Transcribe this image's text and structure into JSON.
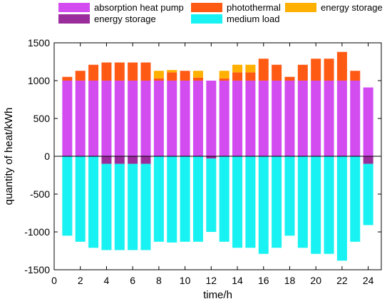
{
  "chart_data": {
    "type": "bar",
    "stacked": true,
    "xlabel": "time/h",
    "ylabel": "quantity of heat/kWh",
    "x": [
      1,
      2,
      3,
      4,
      5,
      6,
      7,
      8,
      9,
      10,
      11,
      12,
      13,
      14,
      15,
      16,
      17,
      18,
      19,
      20,
      21,
      22,
      23,
      24
    ],
    "xlim": [
      0,
      25
    ],
    "ylim": [
      -1500,
      1500
    ],
    "xticks": [
      0,
      2,
      4,
      6,
      8,
      10,
      12,
      14,
      16,
      18,
      20,
      22,
      24
    ],
    "yticks": [
      -1500,
      -1000,
      -500,
      0,
      500,
      1000,
      1500
    ],
    "grid": false,
    "legend_position": "top",
    "series": [
      {
        "name": "absorption heat pump",
        "color": "#d24cf0",
        "sign": "positive",
        "values": [
          1000,
          1000,
          1000,
          1000,
          1000,
          1000,
          1000,
          1000,
          1000,
          1000,
          1000,
          1000,
          1000,
          1000,
          1000,
          1000,
          1000,
          1000,
          1000,
          1000,
          1000,
          1000,
          1000,
          910
        ]
      },
      {
        "name": "photothermal",
        "color": "#ff5a14",
        "sign": "positive",
        "values": [
          50,
          130,
          210,
          240,
          240,
          240,
          240,
          30,
          110,
          130,
          40,
          0,
          30,
          110,
          110,
          290,
          210,
          50,
          210,
          290,
          290,
          380,
          130,
          0
        ]
      },
      {
        "name": "energy storage",
        "color": "#ffb000",
        "sign": "positive",
        "values": [
          0,
          0,
          0,
          0,
          0,
          0,
          0,
          100,
          30,
          0,
          90,
          0,
          100,
          100,
          100,
          0,
          0,
          0,
          0,
          0,
          0,
          0,
          0,
          0
        ]
      },
      {
        "name": "energy storage",
        "color": "#9b2c9b",
        "sign": "negative",
        "values": [
          0,
          0,
          0,
          -100,
          -100,
          -100,
          -100,
          0,
          0,
          0,
          0,
          -30,
          0,
          0,
          0,
          0,
          0,
          0,
          0,
          0,
          0,
          0,
          0,
          -100
        ]
      },
      {
        "name": "medium load",
        "color": "#19f2f2",
        "sign": "negative",
        "values": [
          -1050,
          -1130,
          -1210,
          -1140,
          -1140,
          -1140,
          -1140,
          -1130,
          -1140,
          -1130,
          -1130,
          -970,
          -1130,
          -1210,
          -1210,
          -1290,
          -1210,
          -1050,
          -1210,
          -1290,
          -1290,
          -1380,
          -1130,
          -810
        ]
      }
    ]
  }
}
